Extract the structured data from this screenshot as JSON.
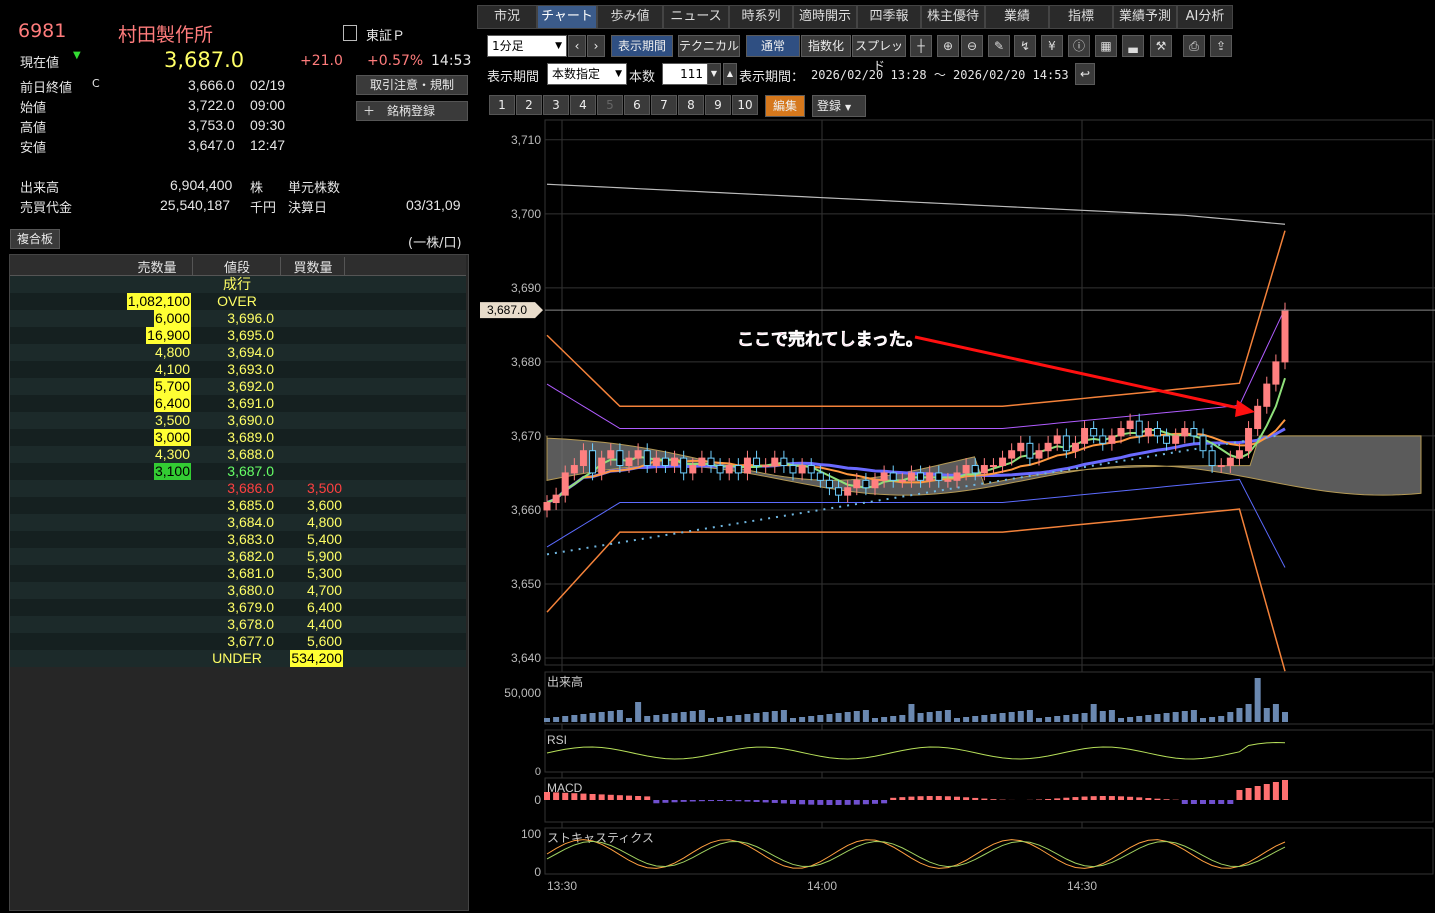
{
  "stock": {
    "code": "6981",
    "name": "村田製作所",
    "market": "東証Ｐ",
    "current_label": "現在値",
    "current_price": "3,687.0",
    "change": "+21.0",
    "change_pct": "+0.57%",
    "time": "14:53",
    "trade_note_button": "取引注意・規制",
    "register_button": "銘柄登録",
    "stats": [
      {
        "label": "前日終値",
        "flag": "C",
        "value": "3,666.0",
        "time": "02/19"
      },
      {
        "label": "始値",
        "flag": "",
        "value": "3,722.0",
        "time": "09:00"
      },
      {
        "label": "高値",
        "flag": "",
        "value": "3,753.0",
        "time": "09:30"
      },
      {
        "label": "安値",
        "flag": "",
        "value": "3,647.0",
        "time": "12:47"
      }
    ],
    "volume_label": "出来高",
    "volume": "6,904,400",
    "volume_unit": "株",
    "unit_shares_label": "単元株数",
    "turnover_label": "売買代金",
    "turnover": "25,540,187",
    "turnover_unit": "千円",
    "settlement_label": "決算日",
    "settlement": "03/31,09"
  },
  "orderbook": {
    "tab_label": "複合板",
    "unit_note": "(一株/口)",
    "headers": {
      "sell": "売数量",
      "price": "値段",
      "buy": "買数量"
    },
    "market_order": "成行",
    "over": {
      "sell": "1,082,100",
      "price": "OVER"
    },
    "asks": [
      {
        "qty": "6,000",
        "price": "3,696.0",
        "hl": true
      },
      {
        "qty": "16,900",
        "price": "3,695.0",
        "hl": true
      },
      {
        "qty": "4,800",
        "price": "3,694.0",
        "hl": false
      },
      {
        "qty": "4,100",
        "price": "3,693.0",
        "hl": false
      },
      {
        "qty": "5,700",
        "price": "3,692.0",
        "hl": true
      },
      {
        "qty": "6,400",
        "price": "3,691.0",
        "hl": true
      },
      {
        "qty": "3,500",
        "price": "3,690.0",
        "hl": false
      },
      {
        "qty": "3,000",
        "price": "3,689.0",
        "hl": true
      },
      {
        "qty": "4,300",
        "price": "3,688.0",
        "hl": false
      },
      {
        "qty": "3,100",
        "price": "3,687.0",
        "hl": "green"
      }
    ],
    "bids": [
      {
        "price": "3,686.0",
        "qty": "3,500",
        "red": true
      },
      {
        "price": "3,685.0",
        "qty": "3,600"
      },
      {
        "price": "3,684.0",
        "qty": "4,800"
      },
      {
        "price": "3,683.0",
        "qty": "5,400"
      },
      {
        "price": "3,682.0",
        "qty": "5,900"
      },
      {
        "price": "3,681.0",
        "qty": "5,300"
      },
      {
        "price": "3,680.0",
        "qty": "4,700"
      },
      {
        "price": "3,679.0",
        "qty": "6,400"
      },
      {
        "price": "3,678.0",
        "qty": "4,400"
      },
      {
        "price": "3,677.0",
        "qty": "5,600"
      }
    ],
    "under": {
      "price": "UNDER",
      "buy": "534,200"
    }
  },
  "tabs": [
    "市況",
    "チャート",
    "歩み値",
    "ニュース",
    "時系列",
    "適時開示",
    "四季報",
    "株主優待",
    "業績",
    "指標",
    "業績予測",
    "AI分析"
  ],
  "active_tab": "チャート",
  "toolbar": {
    "timeframe": "1分足",
    "period_button": "表示期間",
    "technical_button": "テクニカル",
    "normal_button": "通常",
    "index_button": "指数化",
    "spread_button": "スプレッド",
    "period_label": "表示期間",
    "period_mode": "本数指定",
    "count_label": "本数",
    "count_value": "111",
    "range_label": "表示期間：",
    "range_value": "2026/02/20 13:28 ～ 2026/02/20 14:53",
    "number_tabs": [
      "1",
      "2",
      "3",
      "4",
      "5",
      "6",
      "7",
      "8",
      "9",
      "10"
    ],
    "edit_button": "編集",
    "register_button": "登録"
  },
  "chart_data": {
    "type": "candlestick",
    "y_ticks": [
      "3,710",
      "3,700",
      "3,690",
      "3,680",
      "3,670",
      "3,660",
      "3,650",
      "3,640"
    ],
    "ylim": [
      3640,
      3712
    ],
    "x_ticks": [
      "13:30",
      "14:00",
      "14:30"
    ],
    "current_price_tag": "3,687.0",
    "annotation": "ここで売れてしまった。",
    "sub_panels": [
      "出来高",
      "RSI",
      "MACD",
      "ストキャスティクス"
    ],
    "volume_tick": "50,000",
    "stoch_ticks": [
      "100",
      "0"
    ],
    "macd_tick": "0",
    "rsi_tick": "0",
    "close": [
      3661,
      3662,
      3665,
      3666,
      3668,
      3665,
      3667,
      3668,
      3666,
      3667,
      3668,
      3666,
      3667,
      3666,
      3667,
      3665,
      3666,
      3667,
      3666,
      3665,
      3666,
      3665,
      3667,
      3666,
      3666,
      3667,
      3666,
      3665,
      3666,
      3665,
      3664,
      3663,
      3662,
      3663,
      3664,
      3663,
      3664,
      3665,
      3664,
      3664,
      3665,
      3664,
      3665,
      3664,
      3664,
      3665,
      3666,
      3665,
      3666,
      3666,
      3667,
      3668,
      3669,
      3667,
      3668,
      3669,
      3670,
      3668,
      3669,
      3671,
      3670,
      3669,
      3670,
      3671,
      3672,
      3670,
      3671,
      3670,
      3669,
      3670,
      3671,
      3670,
      3668,
      3666,
      3666,
      3667,
      3668,
      3671,
      3674,
      3677,
      3680,
      3687
    ]
  },
  "colors": {
    "price_up": "#ff7c7c",
    "price_text_yellow": "#ffff66",
    "down_red": "#ff4040",
    "tab_active": "#3b5b8a",
    "annotation": "#ff3b8a",
    "arrow": "#ff1010"
  }
}
